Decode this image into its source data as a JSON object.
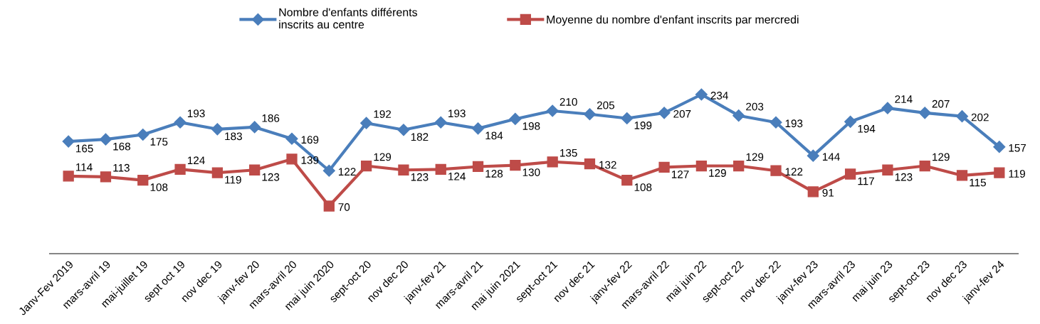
{
  "chart_data": {
    "type": "line",
    "categories": [
      "Janv-Fev 2019",
      "mars-avril 19",
      "mai-juillet 19",
      "sept oct 19",
      "nov dec 19",
      "janv-fev 20",
      "mars-avril 20",
      "mai juin 2020",
      "sept-oct 20",
      "nov dec 20",
      "janv-fev 21",
      "mars-avril 21",
      "mai juin 2021",
      "sept-oct 21",
      "nov dec 21",
      "janv-fev 22",
      "mars-avril 22",
      "mai juin 22",
      "sept-oct 22",
      "nov dec 22",
      "janv-fev 23",
      "mars-avril 23",
      "mai juin 23",
      "sept-oct 23",
      "nov dec 23",
      "janv-fev 24"
    ],
    "series": [
      {
        "name": "Nombre d'enfants différents\ninscrits au centre",
        "color": "#4a7ebb",
        "marker": "diamond",
        "values": [
          165,
          168,
          175,
          193,
          183,
          186,
          169,
          122,
          192,
          182,
          193,
          184,
          198,
          210,
          205,
          199,
          207,
          234,
          203,
          193,
          144,
          194,
          214,
          207,
          202,
          157
        ]
      },
      {
        "name": "Moyenne du nombre d'enfant inscrits par mercredi",
        "color": "#be4b48",
        "marker": "square",
        "values": [
          114,
          113,
          108,
          124,
          119,
          123,
          139,
          70,
          129,
          123,
          124,
          128,
          130,
          135,
          132,
          108,
          127,
          129,
          129,
          122,
          91,
          117,
          123,
          129,
          115,
          119
        ]
      }
    ],
    "data_labels": true,
    "legend": "top",
    "grid": false,
    "tick_labels": "x",
    "line_style": "solid"
  }
}
